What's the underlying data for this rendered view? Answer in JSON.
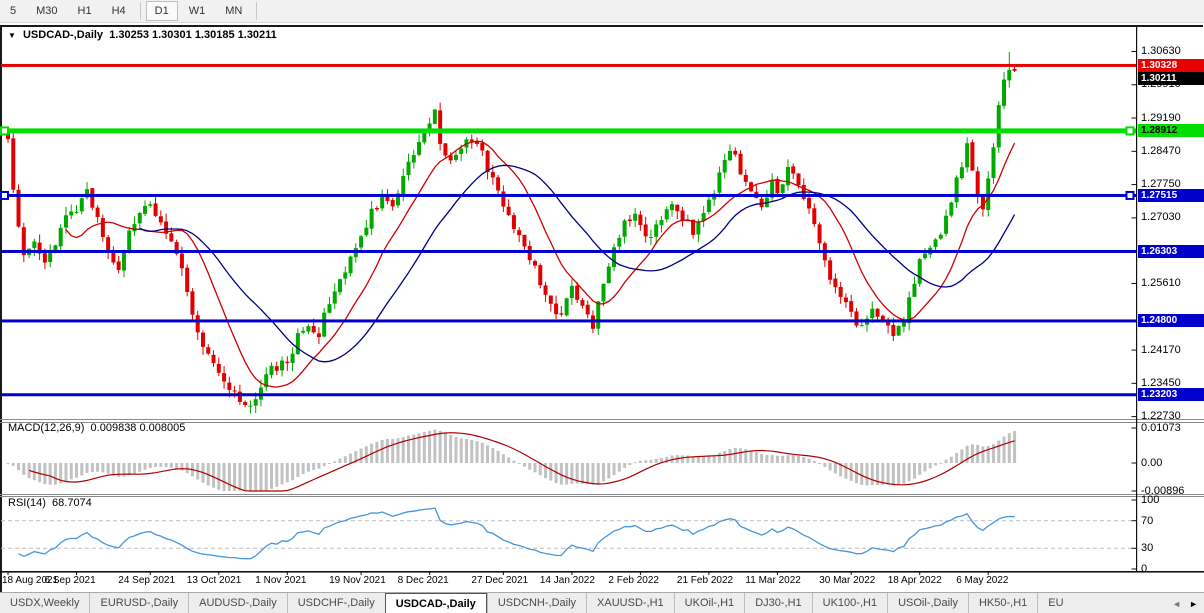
{
  "timeframe_toolbar": {
    "buttons": [
      "5",
      "M30",
      "H1",
      "H4",
      "D1",
      "W1",
      "MN"
    ],
    "active": "D1",
    "group_separators_after": [
      "H4",
      "MN"
    ]
  },
  "chart": {
    "caret_icon": "▼",
    "symbol": "USDCAD-,Daily",
    "ohlc_text": "1.30253 1.30301 1.30185 1.30211"
  },
  "price_axis": {
    "min": 1.227,
    "max": 1.3103,
    "ticks": [
      "1.30630",
      "1.29910",
      "1.29190",
      "1.28470",
      "1.27750",
      "1.27030",
      "1.25610",
      "1.24170",
      "1.23450",
      "1.22730"
    ]
  },
  "price_marks": [
    {
      "label": "1.30328",
      "value": 1.30328,
      "role": "resistance-line",
      "line_color": "#e60000",
      "line_width": 3,
      "badge_bg": "#e60000",
      "badge_fg": "#ffffff",
      "end_markers": false
    },
    {
      "label": "1.30211",
      "value": 1.30211,
      "role": "bid-price",
      "line_color": null,
      "line_width": 0,
      "badge_bg": "#000000",
      "badge_fg": "#ffffff",
      "end_markers": false
    },
    {
      "label": "1.28912",
      "value": 1.28912,
      "role": "support-line",
      "line_color": "#00dd00",
      "line_width": 5,
      "badge_bg": "#00dd00",
      "badge_fg": "#000000",
      "end_markers": true
    },
    {
      "label": "1.27515",
      "value": 1.27515,
      "role": "support-line",
      "line_color": "#0000cc",
      "line_width": 3,
      "badge_bg": "#0000cc",
      "badge_fg": "#ffffff",
      "end_markers": true
    },
    {
      "label": "1.26303",
      "value": 1.26303,
      "role": "support-line",
      "line_color": "#0000cc",
      "line_width": 3,
      "badge_bg": "#0000cc",
      "badge_fg": "#ffffff",
      "end_markers": false
    },
    {
      "label": "1.24800",
      "value": 1.248,
      "role": "support-line",
      "line_color": "#0000cc",
      "line_width": 3,
      "badge_bg": "#0000cc",
      "badge_fg": "#ffffff",
      "end_markers": false
    },
    {
      "label": "1.23203",
      "value": 1.23203,
      "role": "support-line",
      "line_color": "#0000cc",
      "line_width": 3,
      "badge_bg": "#0000cc",
      "badge_fg": "#ffffff",
      "end_markers": false
    }
  ],
  "macd": {
    "name": "MACD(12,26,9)",
    "values_text": "0.009838 0.008005",
    "main_value": 0.009838,
    "signal_value": 0.008005,
    "axis_ticks": [
      "0.01073",
      "0.00",
      "-0.00896"
    ],
    "axis_values": [
      0.01073,
      0,
      -0.00896
    ]
  },
  "rsi": {
    "name": "RSI(14)",
    "value_text": "68.7074",
    "value": 68.7074,
    "axis_ticks": [
      "100",
      "70",
      "30",
      "0"
    ],
    "axis_values": [
      100,
      70,
      30,
      0
    ],
    "level_lines": [
      70,
      30
    ]
  },
  "date_axis": [
    {
      "label": "18 Aug 2021",
      "day": 0
    },
    {
      "label": "6 Sep 2021",
      "day": 13
    },
    {
      "label": "24 Sep 2021",
      "day": 27
    },
    {
      "label": "13 Oct 2021",
      "day": 40
    },
    {
      "label": "1 Nov 2021",
      "day": 53
    },
    {
      "label": "19 Nov 2021",
      "day": 67
    },
    {
      "label": "8 Dec 2021",
      "day": 80
    },
    {
      "label": "27 Dec 2021",
      "day": 94
    },
    {
      "label": "14 Jan 2022",
      "day": 107
    },
    {
      "label": "2 Feb 2022",
      "day": 120
    },
    {
      "label": "21 Feb 2022",
      "day": 133
    },
    {
      "label": "11 Mar 2022",
      "day": 146
    },
    {
      "label": "30 Mar 2022",
      "day": 160
    },
    {
      "label": "18 Apr 2022",
      "day": 173
    },
    {
      "label": "6 May 2022",
      "day": 186
    }
  ],
  "tabs": {
    "items": [
      "USDX,Weekly",
      "EURUSD-,Daily",
      "AUDUSD-,Daily",
      "USDCHF-,Daily",
      "USDCAD-,Daily",
      "USDCNH-,Daily",
      "XAUUSD-,H1",
      "UKOil-,H1",
      "DJ30-,H1",
      "UK100-,H1",
      "USOil-,Daily",
      "HK50-,H1",
      "EU"
    ],
    "active": "USDCAD-,Daily",
    "scroll_left_icon": "◄",
    "scroll_right_icon": "►"
  },
  "chart_data": {
    "type": "candlestick",
    "symbol": "USDCAD-",
    "timeframe": "Daily",
    "title": "USDCAD-,Daily",
    "last_candle": {
      "open": 1.30253,
      "high": 1.30301,
      "low": 1.30185,
      "close": 1.30211
    },
    "visible_high": 1.3063,
    "visible_low": 1.2273,
    "num_candles": 192,
    "close_anchors": [
      [
        0,
        1.2875
      ],
      [
        1,
        1.2762
      ],
      [
        2,
        1.2688
      ],
      [
        3,
        1.2628
      ],
      [
        5,
        1.2655
      ],
      [
        7,
        1.2602
      ],
      [
        9,
        1.2645
      ],
      [
        11,
        1.2698
      ],
      [
        13,
        1.2725
      ],
      [
        15,
        1.2755
      ],
      [
        17,
        1.27
      ],
      [
        19,
        1.2622
      ],
      [
        21,
        1.26
      ],
      [
        23,
        1.2665
      ],
      [
        25,
        1.2718
      ],
      [
        27,
        1.274
      ],
      [
        29,
        1.2692
      ],
      [
        31,
        1.2645
      ],
      [
        33,
        1.259
      ],
      [
        35,
        1.2495
      ],
      [
        37,
        1.2415
      ],
      [
        40,
        1.237
      ],
      [
        42,
        1.2335
      ],
      [
        44,
        1.2305
      ],
      [
        46,
        1.229
      ],
      [
        48,
        1.2335
      ],
      [
        50,
        1.2375
      ],
      [
        53,
        1.2395
      ],
      [
        55,
        1.2445
      ],
      [
        57,
        1.2475
      ],
      [
        59,
        1.2455
      ],
      [
        61,
        1.252
      ],
      [
        63,
        1.2565
      ],
      [
        65,
        1.2625
      ],
      [
        67,
        1.2665
      ],
      [
        69,
        1.2715
      ],
      [
        71,
        1.2748
      ],
      [
        73,
        1.2725
      ],
      [
        75,
        1.2795
      ],
      [
        77,
        1.2835
      ],
      [
        79,
        1.2892
      ],
      [
        81,
        1.2942
      ],
      [
        82,
        1.2862
      ],
      [
        84,
        1.2825
      ],
      [
        86,
        1.2855
      ],
      [
        88,
        1.2875
      ],
      [
        90,
        1.284
      ],
      [
        92,
        1.2782
      ],
      [
        94,
        1.2732
      ],
      [
        96,
        1.2682
      ],
      [
        98,
        1.2642
      ],
      [
        100,
        1.2592
      ],
      [
        102,
        1.2532
      ],
      [
        104,
        1.2487
      ],
      [
        106,
        1.2522
      ],
      [
        107,
        1.2545
      ],
      [
        109,
        1.2505
      ],
      [
        111,
        1.2472
      ],
      [
        113,
        1.2555
      ],
      [
        115,
        1.2645
      ],
      [
        117,
        1.2695
      ],
      [
        119,
        1.2715
      ],
      [
        120,
        1.2687
      ],
      [
        122,
        1.2655
      ],
      [
        124,
        1.2705
      ],
      [
        126,
        1.2735
      ],
      [
        128,
        1.2705
      ],
      [
        130,
        1.2675
      ],
      [
        132,
        1.2705
      ],
      [
        133,
        1.2735
      ],
      [
        135,
        1.2795
      ],
      [
        137,
        1.2855
      ],
      [
        139,
        1.2805
      ],
      [
        141,
        1.2755
      ],
      [
        143,
        1.2725
      ],
      [
        145,
        1.2785
      ],
      [
        146,
        1.2765
      ],
      [
        148,
        1.2805
      ],
      [
        150,
        1.2775
      ],
      [
        152,
        1.2715
      ],
      [
        154,
        1.2655
      ],
      [
        156,
        1.2575
      ],
      [
        158,
        1.2525
      ],
      [
        160,
        1.2495
      ],
      [
        162,
        1.2465
      ],
      [
        164,
        1.2505
      ],
      [
        166,
        1.2485
      ],
      [
        168,
        1.2445
      ],
      [
        170,
        1.2485
      ],
      [
        172,
        1.2555
      ],
      [
        173,
        1.2605
      ],
      [
        175,
        1.2645
      ],
      [
        177,
        1.2665
      ],
      [
        179,
        1.2745
      ],
      [
        181,
        1.2815
      ],
      [
        182,
        1.2855
      ],
      [
        183,
        1.2795
      ],
      [
        184,
        1.2745
      ],
      [
        185,
        1.2725
      ],
      [
        186,
        1.2785
      ],
      [
        187,
        1.2865
      ],
      [
        188,
        1.2945
      ],
      [
        189,
        1.3
      ],
      [
        190,
        1.3026
      ],
      [
        191,
        1.30211
      ]
    ],
    "indicators": [
      "MA fast (red)",
      "MA slow (navy)",
      "MACD(12,26,9)",
      "RSI(14)"
    ],
    "colors": {
      "bull": "#00a800",
      "bear": "#e00000",
      "ma_fast": "#cc0000",
      "ma_slow": "#000080",
      "macd_hist": "#c2c2c2",
      "macd_signal": "#b00000",
      "rsi_line": "#4596dd",
      "rsi_level_dash": "#bbbbbb"
    }
  }
}
